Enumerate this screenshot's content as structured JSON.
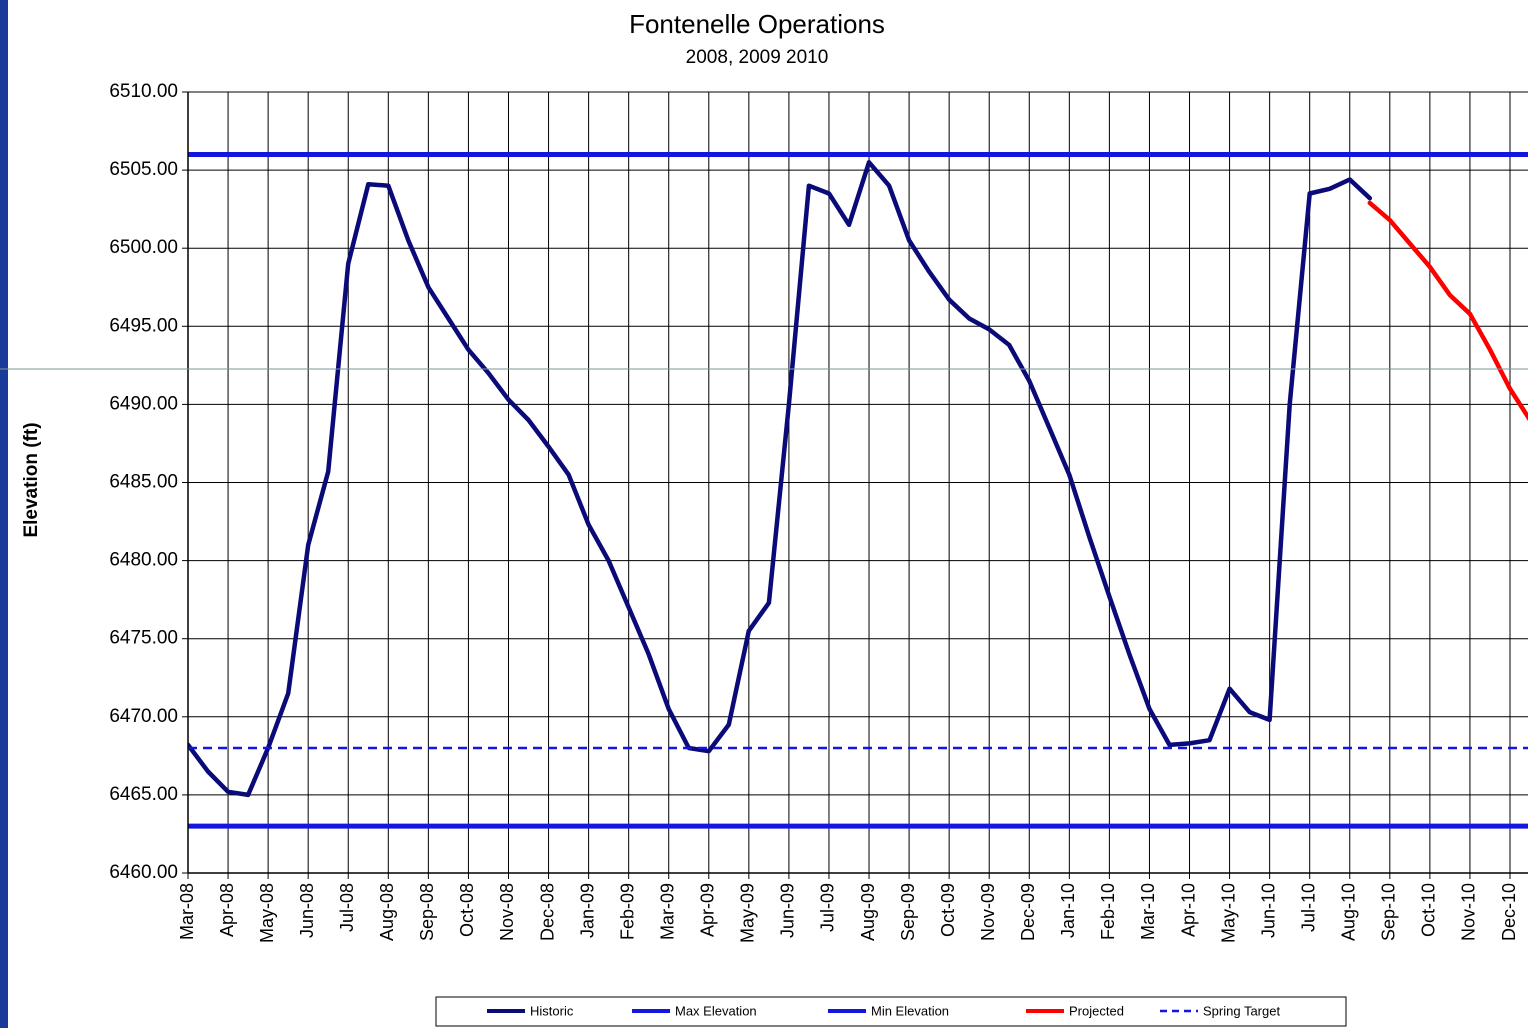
{
  "chart_data": {
    "type": "line",
    "title": "Fontenelle Operations",
    "subtitle": "2008, 2009 2010",
    "y_label": "Elevation (ft)",
    "categories": [
      "Mar-08",
      null,
      "Apr-08",
      null,
      "May-08",
      null,
      "Jun-08",
      null,
      "Jul-08",
      null,
      "Aug-08",
      null,
      "Sep-08",
      null,
      "Oct-08",
      null,
      "Nov-08",
      null,
      "Dec-08",
      null,
      "Jan-09",
      null,
      "Feb-09",
      null,
      "Mar-09",
      null,
      "Apr-09",
      null,
      "May-09",
      null,
      "Jun-09",
      null,
      "Jul-09",
      null,
      "Aug-09",
      null,
      "Sep-09",
      null,
      "Oct-09",
      null,
      "Nov-09",
      null,
      "Dec-09",
      null,
      "Jan-10",
      null,
      "Feb-10",
      null,
      "Mar-10",
      null,
      "Apr-10",
      null,
      "May-10",
      null,
      "Jun-10",
      null,
      "Jul-10",
      null,
      "Aug-10",
      null,
      "Sep-10",
      null,
      "Oct-10",
      null,
      "Nov-10",
      null,
      "Dec-10",
      null
    ],
    "ylim": [
      6460,
      6510
    ],
    "yticks": [
      {
        "value": 6460,
        "label": "6460.00"
      },
      {
        "value": 6465,
        "label": "6465.00"
      },
      {
        "value": 6470,
        "label": "6470.00"
      },
      {
        "value": 6475,
        "label": "6475.00"
      },
      {
        "value": 6480,
        "label": "6480.00"
      },
      {
        "value": 6485,
        "label": "6485.00"
      },
      {
        "value": 6490,
        "label": "6490.00"
      },
      {
        "value": 6495,
        "label": "6495.00"
      },
      {
        "value": 6500,
        "label": "6500.00"
      },
      {
        "value": 6505,
        "label": "6505.00"
      },
      {
        "value": 6510,
        "label": "6510.00"
      }
    ],
    "grid": true,
    "legend": "bottom",
    "series": [
      {
        "name": "Historic",
        "color": "#0a0a78",
        "values": [
          6468.2,
          6466.5,
          6465.2,
          6465.0,
          6468,
          6471.5,
          6481,
          6485.7,
          6499,
          6504.1,
          6504,
          6500.5,
          6497.5,
          6495.5,
          6493.5,
          6492,
          6490.3,
          6489,
          6487.3,
          6485.5,
          6482.3,
          6480,
          6477,
          6474,
          6470.5,
          6468,
          6467.8,
          6469.5,
          6475.5,
          6477.3,
          6490,
          6504,
          6503.5,
          6501.5,
          6505.5,
          6504,
          6500.5,
          6498.5,
          6496.7,
          6495.5,
          6494.8,
          6493.8,
          6491.5,
          6488.5,
          6485.5,
          6481.5,
          6477.7,
          6474,
          6470.5,
          6468.2,
          6468.3,
          6468.5,
          6471.8,
          6470.3,
          6469.8,
          6490,
          6503.5,
          6503.8,
          6504.4,
          6503.2,
          null,
          null,
          null,
          null,
          null,
          null,
          null,
          null
        ]
      },
      {
        "name": "Max Elevation",
        "color": "#1515e0",
        "value": 6506
      },
      {
        "name": "Min Elevation",
        "color": "#1515e0",
        "value": 6463
      },
      {
        "name": "Projected",
        "color": "#ff0000",
        "values": [
          null,
          null,
          null,
          null,
          null,
          null,
          null,
          null,
          null,
          null,
          null,
          null,
          null,
          null,
          null,
          null,
          null,
          null,
          null,
          null,
          null,
          null,
          null,
          null,
          null,
          null,
          null,
          null,
          null,
          null,
          null,
          null,
          null,
          null,
          null,
          null,
          null,
          null,
          null,
          null,
          null,
          null,
          null,
          null,
          null,
          null,
          null,
          null,
          null,
          null,
          null,
          null,
          null,
          null,
          null,
          null,
          null,
          null,
          null,
          6502.9,
          6501.8,
          6500.3,
          6498.8,
          6497,
          6495.8,
          6493.5,
          6491,
          6489
        ]
      },
      {
        "name": "Spring Target",
        "color": "#1515e0",
        "value": 6468,
        "line_style": "dashed"
      }
    ]
  }
}
